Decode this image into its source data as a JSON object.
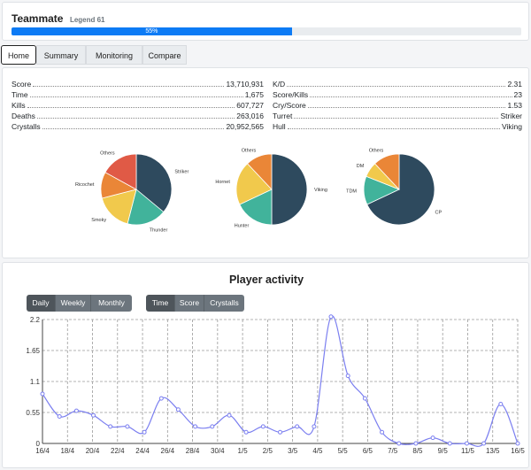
{
  "header": {
    "name": "Teammate",
    "rank": "Legend 61",
    "progress": 55,
    "progress_label": "55%"
  },
  "tabs": [
    {
      "label": "Home",
      "active": true
    },
    {
      "label": "Summary",
      "active": false
    },
    {
      "label": "Monitoring",
      "active": false
    },
    {
      "label": "Compare",
      "active": false
    }
  ],
  "stats_left": [
    {
      "label": "Score",
      "value": "13,710,931"
    },
    {
      "label": "Time",
      "value": "1,675"
    },
    {
      "label": "Kills",
      "value": "607,727"
    },
    {
      "label": "Deaths",
      "value": "263,016"
    },
    {
      "label": "Crystalls",
      "value": "20,952,565"
    }
  ],
  "stats_right": [
    {
      "label": "K/D",
      "value": "2.31"
    },
    {
      "label": "Score/Kills",
      "value": "23"
    },
    {
      "label": "Cry/Score",
      "value": "1.53"
    },
    {
      "label": "Turret",
      "value": "Striker"
    },
    {
      "label": "Hull",
      "value": "Viking"
    }
  ],
  "pies": [
    {
      "name": "turrets",
      "slices": [
        {
          "label": "Striker",
          "value": 36,
          "color": "#2e4a5e"
        },
        {
          "label": "Thunder",
          "value": 18,
          "color": "#41b39b"
        },
        {
          "label": "Smoky",
          "value": 17,
          "color": "#f1c94c"
        },
        {
          "label": "Ricochet",
          "value": 12,
          "color": "#ea8637"
        },
        {
          "label": "Others",
          "value": 17,
          "color": "#e05a46"
        }
      ]
    },
    {
      "name": "hulls",
      "slices": [
        {
          "label": "Viking",
          "value": 50,
          "color": "#2e4a5e"
        },
        {
          "label": "Hunter",
          "value": 18,
          "color": "#41b39b"
        },
        {
          "label": "Hornet",
          "value": 20,
          "color": "#f1c94c"
        },
        {
          "label": "Others",
          "value": 12,
          "color": "#ea8637"
        }
      ]
    },
    {
      "name": "modes",
      "slices": [
        {
          "label": "CP",
          "value": 68,
          "color": "#2e4a5e"
        },
        {
          "label": "TDM",
          "value": 13,
          "color": "#41b39b"
        },
        {
          "label": "DM",
          "value": 7,
          "color": "#f1c94c"
        },
        {
          "label": "Others",
          "value": 12,
          "color": "#ea8637"
        }
      ]
    }
  ],
  "activity": {
    "title": "Player activity",
    "period_buttons": [
      {
        "label": "Daily",
        "active": true
      },
      {
        "label": "Weekly",
        "active": false
      },
      {
        "label": "Monthly",
        "active": false
      }
    ],
    "metric_buttons": [
      {
        "label": "Time",
        "active": true
      },
      {
        "label": "Score",
        "active": false
      },
      {
        "label": "Crystalls",
        "active": false
      }
    ]
  },
  "chart_data": {
    "type": "line",
    "x_tick_labels": [
      "16/4",
      "18/4",
      "20/4",
      "22/4",
      "24/4",
      "26/4",
      "28/4",
      "30/4",
      "1/5",
      "2/5",
      "3/5",
      "4/5",
      "5/5",
      "6/5",
      "7/5",
      "8/5",
      "9/5",
      "11/5",
      "13/5",
      "16/5"
    ],
    "y_tick_labels": [
      "0",
      "0.55",
      "1.1",
      "1.65",
      "2.2"
    ],
    "ylim": [
      0,
      2.2
    ],
    "color": "#7b7ff0",
    "grid": true,
    "series": [
      {
        "values": [
          0.88,
          0.48,
          0.58,
          0.5,
          0.3,
          0.3,
          0.2,
          0.8,
          0.6,
          0.3,
          0.3,
          0.5,
          0.2,
          0.3,
          0.2,
          0.3,
          0.3,
          2.25,
          1.2,
          0.8,
          0.2,
          0,
          0,
          0.1,
          0,
          0,
          0,
          0.7,
          0
        ]
      }
    ]
  }
}
